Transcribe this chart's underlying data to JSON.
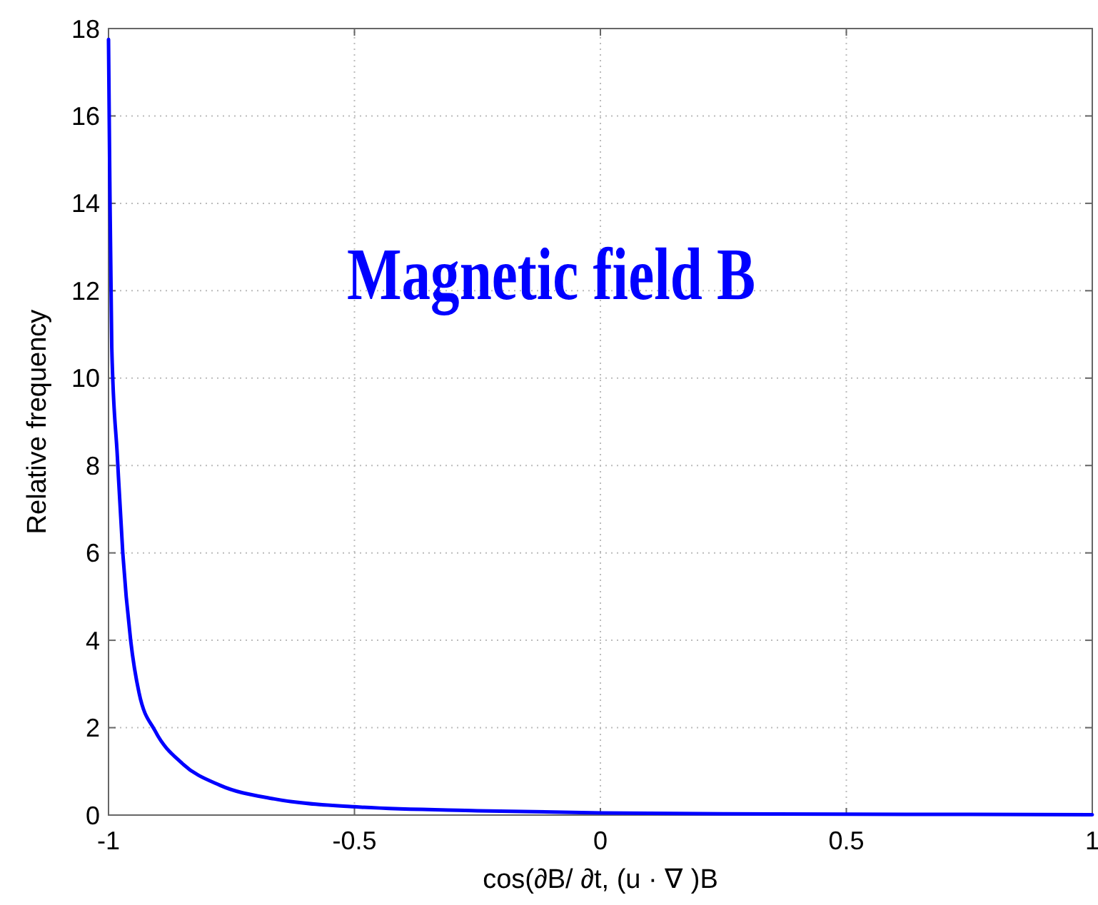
{
  "chart_data": {
    "type": "line",
    "xlabel": "cos(∂B/ ∂t, (u · ∇ )B",
    "ylabel": "Relative frequency",
    "annotations": [
      "Magnetic field B"
    ],
    "x": [
      -1,
      -0.9978,
      -0.9934,
      -0.982,
      -0.971,
      -0.955,
      -0.938,
      -0.905,
      -0.85,
      -0.773,
      -0.663,
      -0.5,
      -0.25,
      0,
      0.25,
      0.5,
      0.75,
      1
    ],
    "series": [
      {
        "color": "#0000ff",
        "values": [
          17.75,
          15,
          10.7,
          8.2,
          6,
          4,
          2.8,
          1.92,
          1.18,
          0.68,
          0.37,
          0.19,
          0.1,
          0.05,
          0.03,
          0.02,
          0.015,
          0.01
        ]
      }
    ],
    "xlim": [
      -1,
      1
    ],
    "ylim": [
      0,
      18
    ],
    "xticks": [
      -1,
      -0.5,
      0,
      0.5,
      1
    ],
    "yticks": [
      0,
      2,
      4,
      6,
      8,
      10,
      12,
      14,
      16,
      18
    ],
    "grid": true,
    "line_style": "solid",
    "marker": "none"
  }
}
